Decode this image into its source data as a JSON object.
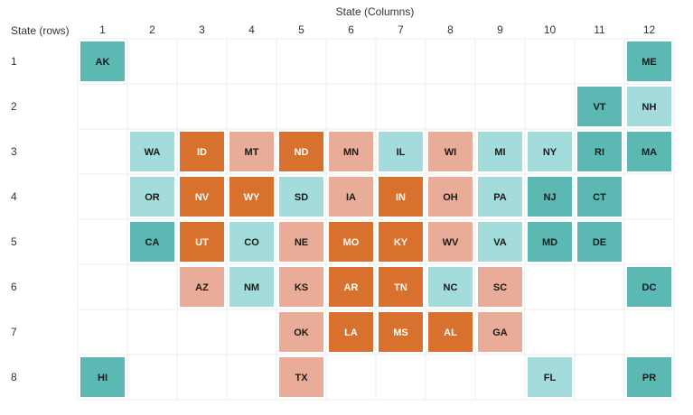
{
  "chart_data": {
    "type": "heatmap",
    "column_axis_title": "State (Columns)",
    "row_axis_title": "State (rows)",
    "columns": [
      "1",
      "2",
      "3",
      "4",
      "5",
      "6",
      "7",
      "8",
      "9",
      "10",
      "11",
      "12"
    ],
    "rows": [
      "1",
      "2",
      "3",
      "4",
      "5",
      "6",
      "7",
      "8"
    ],
    "category_colors": {
      "dark_teal": "#5cb8b2",
      "light_teal": "#a3dcda",
      "dark_orange": "#d9712e",
      "light_salmon": "#e8ac98"
    },
    "label_colors": {
      "dark_teal": "#1a1a1a",
      "light_teal": "#1a1a1a",
      "dark_orange": "#ffffff",
      "light_salmon": "#1a1a1a"
    },
    "tiles": [
      {
        "state": "AK",
        "row": 1,
        "col": 1,
        "category": "dark_teal"
      },
      {
        "state": "ME",
        "row": 1,
        "col": 12,
        "category": "dark_teal"
      },
      {
        "state": "VT",
        "row": 2,
        "col": 11,
        "category": "dark_teal"
      },
      {
        "state": "NH",
        "row": 2,
        "col": 12,
        "category": "light_teal"
      },
      {
        "state": "WA",
        "row": 3,
        "col": 2,
        "category": "light_teal"
      },
      {
        "state": "ID",
        "row": 3,
        "col": 3,
        "category": "dark_orange"
      },
      {
        "state": "MT",
        "row": 3,
        "col": 4,
        "category": "light_salmon"
      },
      {
        "state": "ND",
        "row": 3,
        "col": 5,
        "category": "dark_orange"
      },
      {
        "state": "MN",
        "row": 3,
        "col": 6,
        "category": "light_salmon"
      },
      {
        "state": "IL",
        "row": 3,
        "col": 7,
        "category": "light_teal"
      },
      {
        "state": "WI",
        "row": 3,
        "col": 8,
        "category": "light_salmon"
      },
      {
        "state": "MI",
        "row": 3,
        "col": 9,
        "category": "light_teal"
      },
      {
        "state": "NY",
        "row": 3,
        "col": 10,
        "category": "light_teal"
      },
      {
        "state": "RI",
        "row": 3,
        "col": 11,
        "category": "dark_teal"
      },
      {
        "state": "MA",
        "row": 3,
        "col": 12,
        "category": "dark_teal"
      },
      {
        "state": "OR",
        "row": 4,
        "col": 2,
        "category": "light_teal"
      },
      {
        "state": "NV",
        "row": 4,
        "col": 3,
        "category": "dark_orange"
      },
      {
        "state": "WY",
        "row": 4,
        "col": 4,
        "category": "dark_orange"
      },
      {
        "state": "SD",
        "row": 4,
        "col": 5,
        "category": "light_teal"
      },
      {
        "state": "IA",
        "row": 4,
        "col": 6,
        "category": "light_salmon"
      },
      {
        "state": "IN",
        "row": 4,
        "col": 7,
        "category": "dark_orange"
      },
      {
        "state": "OH",
        "row": 4,
        "col": 8,
        "category": "light_salmon"
      },
      {
        "state": "PA",
        "row": 4,
        "col": 9,
        "category": "light_teal"
      },
      {
        "state": "NJ",
        "row": 4,
        "col": 10,
        "category": "dark_teal"
      },
      {
        "state": "CT",
        "row": 4,
        "col": 11,
        "category": "dark_teal"
      },
      {
        "state": "CA",
        "row": 5,
        "col": 2,
        "category": "dark_teal"
      },
      {
        "state": "UT",
        "row": 5,
        "col": 3,
        "category": "dark_orange"
      },
      {
        "state": "CO",
        "row": 5,
        "col": 4,
        "category": "light_teal"
      },
      {
        "state": "NE",
        "row": 5,
        "col": 5,
        "category": "light_salmon"
      },
      {
        "state": "MO",
        "row": 5,
        "col": 6,
        "category": "dark_orange"
      },
      {
        "state": "KY",
        "row": 5,
        "col": 7,
        "category": "dark_orange"
      },
      {
        "state": "WV",
        "row": 5,
        "col": 8,
        "category": "light_salmon"
      },
      {
        "state": "VA",
        "row": 5,
        "col": 9,
        "category": "light_teal"
      },
      {
        "state": "MD",
        "row": 5,
        "col": 10,
        "category": "dark_teal"
      },
      {
        "state": "DE",
        "row": 5,
        "col": 11,
        "category": "dark_teal"
      },
      {
        "state": "AZ",
        "row": 6,
        "col": 3,
        "category": "light_salmon"
      },
      {
        "state": "NM",
        "row": 6,
        "col": 4,
        "category": "light_teal"
      },
      {
        "state": "KS",
        "row": 6,
        "col": 5,
        "category": "light_salmon"
      },
      {
        "state": "AR",
        "row": 6,
        "col": 6,
        "category": "dark_orange"
      },
      {
        "state": "TN",
        "row": 6,
        "col": 7,
        "category": "dark_orange"
      },
      {
        "state": "NC",
        "row": 6,
        "col": 8,
        "category": "light_teal"
      },
      {
        "state": "SC",
        "row": 6,
        "col": 9,
        "category": "light_salmon"
      },
      {
        "state": "DC",
        "row": 6,
        "col": 12,
        "category": "dark_teal"
      },
      {
        "state": "OK",
        "row": 7,
        "col": 5,
        "category": "light_salmon"
      },
      {
        "state": "LA",
        "row": 7,
        "col": 6,
        "category": "dark_orange"
      },
      {
        "state": "MS",
        "row": 7,
        "col": 7,
        "category": "dark_orange"
      },
      {
        "state": "AL",
        "row": 7,
        "col": 8,
        "category": "dark_orange"
      },
      {
        "state": "GA",
        "row": 7,
        "col": 9,
        "category": "light_salmon"
      },
      {
        "state": "HI",
        "row": 8,
        "col": 1,
        "category": "dark_teal"
      },
      {
        "state": "TX",
        "row": 8,
        "col": 5,
        "category": "light_salmon"
      },
      {
        "state": "FL",
        "row": 8,
        "col": 10,
        "category": "light_teal"
      },
      {
        "state": "PR",
        "row": 8,
        "col": 12,
        "category": "dark_teal"
      }
    ]
  }
}
